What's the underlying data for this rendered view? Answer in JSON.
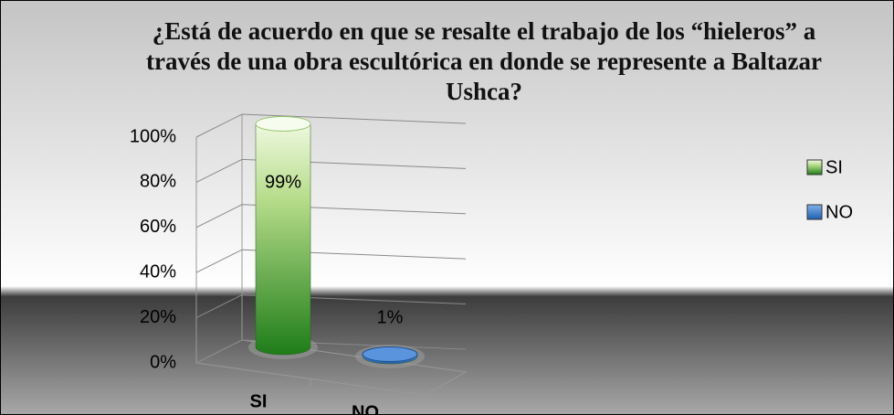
{
  "chart_data": {
    "type": "bar3d",
    "title": "¿Está de acuerdo en que se resalte el trabajo de los “hieleros” a través de una obra escultórica en donde se represente a Baltazar Ushca?",
    "categories": [
      "SI",
      "NO"
    ],
    "values": [
      99,
      1
    ],
    "value_labels": [
      "99%",
      "1%"
    ],
    "colors": [
      "#3d9a2a",
      "#3a78c8"
    ],
    "ylim": [
      0,
      100
    ],
    "yticks": [
      {
        "value": 0,
        "label": "0%"
      },
      {
        "value": 20,
        "label": "20%"
      },
      {
        "value": 40,
        "label": "40%"
      },
      {
        "value": 60,
        "label": "60%"
      },
      {
        "value": 80,
        "label": "80%"
      },
      {
        "value": 100,
        "label": "100%"
      }
    ],
    "grid": true,
    "legend": "right"
  }
}
